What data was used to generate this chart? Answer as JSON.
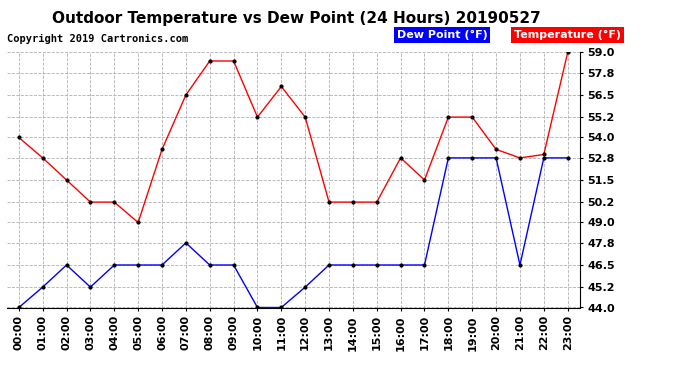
{
  "title": "Outdoor Temperature vs Dew Point (24 Hours) 20190527",
  "copyright": "Copyright 2019 Cartronics.com",
  "legend_dew": "Dew Point (°F)",
  "legend_temp": "Temperature (°F)",
  "x_labels": [
    "00:00",
    "01:00",
    "02:00",
    "03:00",
    "04:00",
    "05:00",
    "06:00",
    "07:00",
    "08:00",
    "09:00",
    "10:00",
    "11:00",
    "12:00",
    "13:00",
    "14:00",
    "15:00",
    "16:00",
    "17:00",
    "18:00",
    "19:00",
    "20:00",
    "21:00",
    "22:00",
    "23:00"
  ],
  "temperature": [
    54.0,
    52.8,
    51.5,
    50.2,
    50.2,
    49.0,
    53.3,
    56.5,
    58.5,
    58.5,
    55.2,
    57.0,
    55.2,
    50.2,
    50.2,
    50.2,
    52.8,
    51.5,
    55.2,
    55.2,
    53.3,
    52.8,
    53.0,
    59.0
  ],
  "dew_point": [
    44.0,
    45.2,
    46.5,
    45.2,
    46.5,
    46.5,
    46.5,
    47.8,
    46.5,
    46.5,
    44.0,
    44.0,
    45.2,
    46.5,
    46.5,
    46.5,
    46.5,
    46.5,
    52.8,
    52.8,
    52.8,
    46.5,
    52.8,
    52.8
  ],
  "ylim": [
    44.0,
    59.0
  ],
  "yticks": [
    44.0,
    45.2,
    46.5,
    47.8,
    49.0,
    50.2,
    51.5,
    52.8,
    54.0,
    55.2,
    56.5,
    57.8,
    59.0
  ],
  "temp_color": "#ff0000",
  "dew_color": "#0000ff",
  "bg_color": "#ffffff",
  "grid_color": "#b0b0b0",
  "marker_color": "#000000",
  "title_fontsize": 11,
  "copyright_fontsize": 7.5,
  "tick_fontsize": 8,
  "legend_fontsize": 8,
  "legend_bg": "#000000",
  "legend_dew_bg": "#0000ff",
  "legend_temp_bg": "#ff0000"
}
